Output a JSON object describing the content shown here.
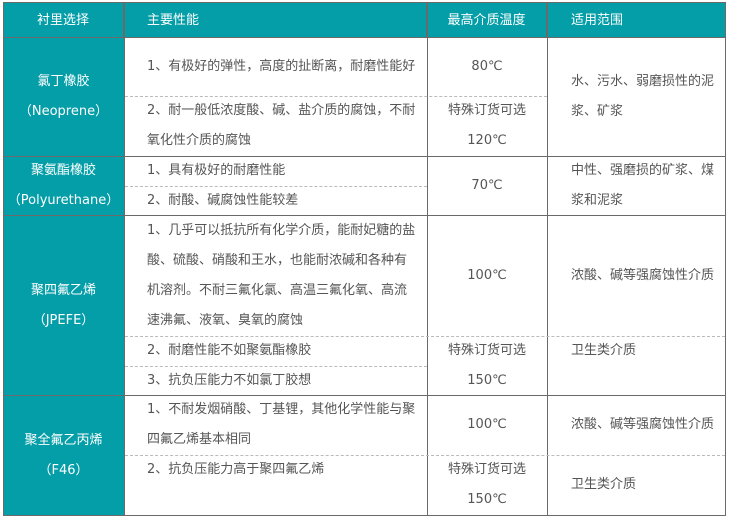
{
  "header": {
    "lining": "衬里选择",
    "performance": "主要性能",
    "max_temp": "最高介质温度",
    "scope": "适用范围"
  },
  "theme": {
    "accent": "#049ea8"
  },
  "groups": [
    {
      "name": "氯丁橡胶",
      "en": "（Neoprene）",
      "perf": [
        "1、有极好的弹性，高度的扯断离，耐磨性能好",
        "2、耐一般低浓度酸、碱、盐介质的腐蚀，不耐氧化性介质的腐蚀"
      ],
      "temps": [
        "80℃",
        "特殊订货可选",
        "120℃"
      ],
      "scope": [
        "水、污水、弱磨损性的泥浆、矿浆"
      ]
    },
    {
      "name": "聚氨酯橡胶",
      "en": "（Polyurethane）",
      "perf": [
        "1、具有极好的耐磨性能",
        "2、耐酸、碱腐蚀性能较差"
      ],
      "temps": [
        "70℃"
      ],
      "scope": [
        "中性、强磨损的矿浆、煤浆和泥浆"
      ]
    },
    {
      "name": "聚四氟乙烯",
      "en": "（JPEFE）",
      "perf": [
        "1、几乎可以抵抗所有化学介质，能耐妃糖的盐酸、硫酸、硝酸和王水，也能耐浓碱和各种有机溶剂。不耐三氟化氯、高温三氟化氧、高流速沸氟、液氧、臭氧的腐蚀",
        "2、耐磨性能不如聚氨酯橡胶",
        "3、抗负压能力不如氯丁胶想"
      ],
      "temps": [
        "100℃",
        "特殊订货可选",
        "150℃"
      ],
      "scope": [
        "浓酸、碱等强腐蚀性介质",
        "卫生类介质"
      ]
    },
    {
      "name": "聚全氟乙丙烯",
      "en": "（F46）",
      "perf": [
        "1、不耐发烟硝酸、丁基锂，其他化学性能与聚四氟乙烯基本相同",
        "2、抗负压能力高于聚四氟乙烯"
      ],
      "temps": [
        "100℃",
        "特殊订货可选",
        "150℃"
      ],
      "scope": [
        "浓酸、碱等强腐蚀性介质",
        "卫生类介质"
      ]
    }
  ]
}
